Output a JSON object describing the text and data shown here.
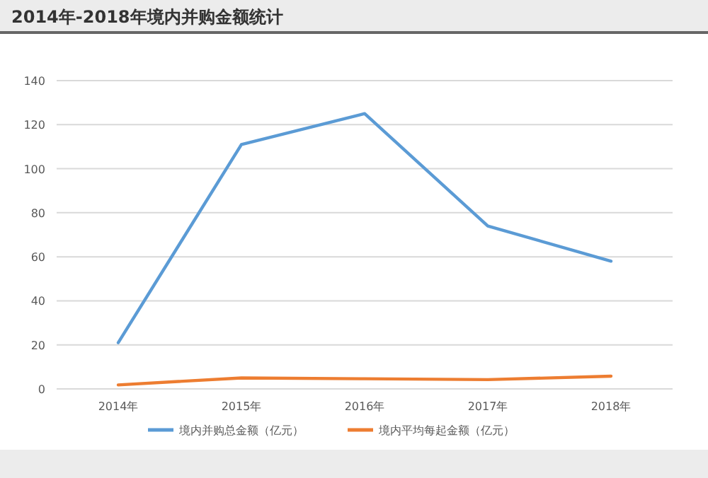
{
  "chart_data": {
    "type": "line",
    "title": "2014年-2018年境内并购金额统计",
    "categories": [
      "2014年",
      "2015年",
      "2016年",
      "2017年",
      "2018年"
    ],
    "series": [
      {
        "name": "境内并购总金额（亿元）",
        "color": "#5b9bd5",
        "values": [
          21,
          111,
          125,
          74,
          58
        ]
      },
      {
        "name": "境内平均每起金额（亿元）",
        "color": "#ed7d31",
        "values": [
          1.8,
          5,
          4.6,
          4.2,
          5.8
        ]
      }
    ],
    "ylim": [
      0,
      140
    ],
    "yticks": [
      0,
      20,
      40,
      60,
      80,
      100,
      120,
      140
    ],
    "grid": "y",
    "legend": "bottom",
    "marker": "none",
    "line_style": "solid"
  }
}
